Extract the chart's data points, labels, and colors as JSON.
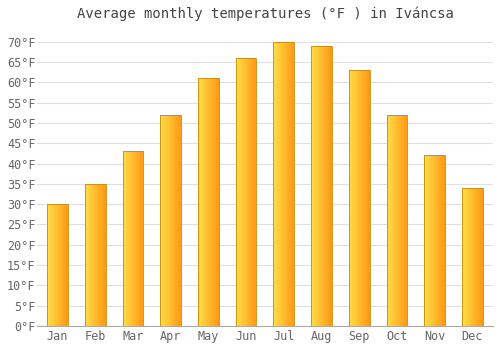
{
  "title": "Average monthly temperatures (°F ) in Iváncsa",
  "months": [
    "Jan",
    "Feb",
    "Mar",
    "Apr",
    "May",
    "Jun",
    "Jul",
    "Aug",
    "Sep",
    "Oct",
    "Nov",
    "Dec"
  ],
  "values": [
    30,
    35,
    43,
    52,
    61,
    66,
    70,
    69,
    63,
    52,
    42,
    34
  ],
  "bar_color_left": "#FFD555",
  "bar_color_right": "#FFA020",
  "bar_border_color": "#CC8800",
  "background_color": "#FFFFFF",
  "grid_color": "#E0E0E0",
  "ylim": [
    0,
    73
  ],
  "yticks": [
    0,
    5,
    10,
    15,
    20,
    25,
    30,
    35,
    40,
    45,
    50,
    55,
    60,
    65,
    70
  ],
  "title_fontsize": 10,
  "tick_fontsize": 8.5,
  "tick_color": "#666666",
  "title_color": "#444444"
}
